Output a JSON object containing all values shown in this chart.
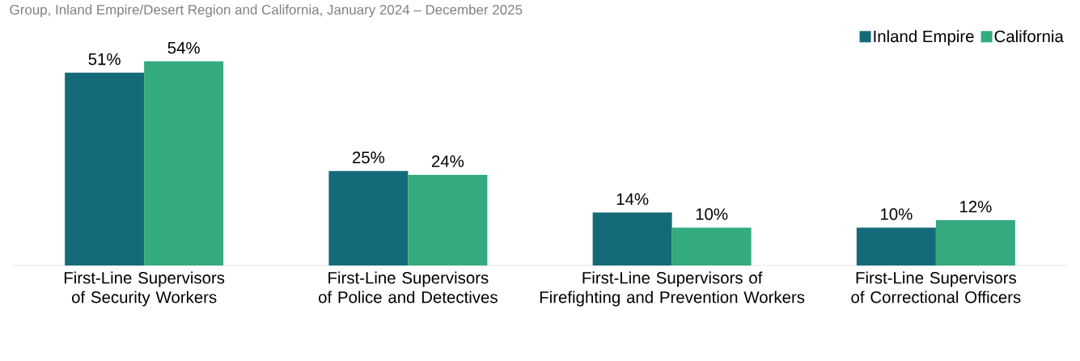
{
  "chart_data": {
    "type": "bar",
    "subtitle": "Group, Inland Empire/Desert Region and California, January 2024 – December 2025",
    "categories": [
      "First-Line Supervisors of Security Workers",
      "First-Line Supervisors of Police and Detectives",
      "First-Line Supervisors of Firefighting and Prevention Workers",
      "First-Line Supervisors of Correctional Officers"
    ],
    "series": [
      {
        "name": "Inland Empire",
        "color": "#156a7a",
        "values": [
          51,
          25,
          14,
          10
        ],
        "value_labels": [
          "51%",
          "25%",
          "14%",
          "10%"
        ]
      },
      {
        "name": "California",
        "color": "#33ab7e",
        "values": [
          54,
          24,
          10,
          12
        ],
        "value_labels": [
          "54%",
          "24%",
          "10%",
          "12%"
        ]
      }
    ],
    "legend": "top right",
    "grid": false
  }
}
